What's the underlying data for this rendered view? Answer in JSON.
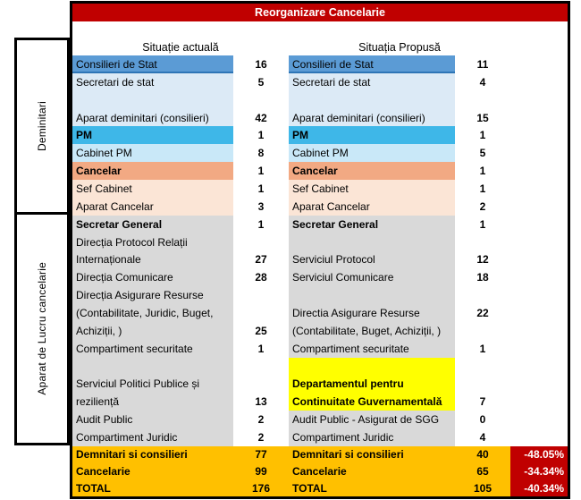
{
  "title": "Reorganizare Cancelarie",
  "column_headers": {
    "left": "Situație actuală",
    "right": "Situația Propusă"
  },
  "sidebar": {
    "group1": "Deminitari",
    "group2": "Aparat de Lucru cancelarie"
  },
  "colors": {
    "header_red": "#C00000",
    "percent_red": "#C00000",
    "consilieri_blue": "#5B9BD5",
    "light_blue": "#DCEAF6",
    "pm_cyan": "#3EB7E8",
    "light_cyan": "#C9E8F8",
    "cancelar_salmon": "#F2A983",
    "peach": "#FBE5D6",
    "gray": "#D9D9D9",
    "yellow": "#FFFF00",
    "summary_gold": "#FFC000"
  },
  "rows": [
    {
      "la": "Consilieri de Stat",
      "lv": "16",
      "ra": "Consilieri de Stat",
      "rv": "11",
      "lc": "blue edge",
      "rc": "blue edge",
      "lb": false,
      "rb": false
    },
    {
      "la": "Secretari de stat",
      "lv": "5",
      "ra": "Secretari de stat",
      "rv": "4",
      "lc": "lblue",
      "rc": "lblue",
      "lb": false,
      "rb": false
    },
    {
      "la": "",
      "lv": "",
      "ra": "",
      "rv": "",
      "lc": "lblue",
      "rc": "lblue",
      "lb": false,
      "rb": false
    },
    {
      "la": "Aparat deminitari (consilieri)",
      "lv": "42",
      "ra": "Aparat deminitari (consilieri)",
      "rv": "15",
      "lc": "lblue",
      "rc": "lblue",
      "lb": false,
      "rb": false
    },
    {
      "la": "PM",
      "lv": "1",
      "ra": "PM",
      "rv": "1",
      "lc": "cyan",
      "rc": "cyan",
      "lb": true,
      "rb": true
    },
    {
      "la": "Cabinet PM",
      "lv": "8",
      "ra": "Cabinet PM",
      "rv": "5",
      "lc": "lcyan",
      "rc": "lcyan",
      "lb": false,
      "rb": false
    },
    {
      "la": "Cancelar",
      "lv": "1",
      "ra": "Cancelar",
      "rv": "1",
      "lc": "salmon",
      "rc": "salmon",
      "lb": true,
      "rb": true
    },
    {
      "la": "Sef Cabinet",
      "lv": "1",
      "ra": "Sef Cabinet",
      "rv": "1",
      "lc": "peach",
      "rc": "peach",
      "lb": false,
      "rb": false
    },
    {
      "la": "Aparat Cancelar",
      "lv": "3",
      "ra": "Aparat Cancelar",
      "rv": "2",
      "lc": "peach",
      "rc": "peach",
      "lb": false,
      "rb": false
    },
    {
      "la": "Secretar General",
      "lv": "1",
      "ra": "Secretar General",
      "rv": "1",
      "lc": "gray",
      "rc": "gray",
      "lb": true,
      "rb": true
    },
    {
      "la": "Direcția Protocol Relații",
      "lv": "",
      "ra": "",
      "rv": "",
      "lc": "gray",
      "rc": "gray",
      "lb": false,
      "rb": false
    },
    {
      "la": "Internaționale",
      "lv": "27",
      "ra": "Serviciul Protocol",
      "rv": "12",
      "lc": "gray",
      "rc": "gray",
      "lb": false,
      "rb": false
    },
    {
      "la": "Direcția Comunicare",
      "lv": "28",
      "ra": "Serviciul Comunicare",
      "rv": "18",
      "lc": "gray",
      "rc": "gray",
      "lb": false,
      "rb": false
    },
    {
      "la": "Direcția Asigurare Resurse",
      "lv": "",
      "ra": "",
      "rv": "",
      "lc": "gray",
      "rc": "gray",
      "lb": false,
      "rb": false
    },
    {
      "la": "(Contabilitate, Juridic, Buget,",
      "lv": "",
      "ra": "Directia Asigurare Resurse",
      "rv": "22",
      "lc": "gray",
      "rc": "gray",
      "lb": false,
      "rb": false
    },
    {
      "la": "Achiziții, )",
      "lv": "25",
      "ra": "(Contabilitate, Buget, Achiziții, )",
      "rv": "",
      "lc": "gray",
      "rc": "gray",
      "lb": false,
      "rb": false
    },
    {
      "la": "Compartiment securitate",
      "lv": "1",
      "ra": "Compartiment securitate",
      "rv": "1",
      "lc": "gray",
      "rc": "gray",
      "lb": false,
      "rb": false
    },
    {
      "la": "",
      "lv": "",
      "ra": "",
      "rv": "",
      "lc": "gray",
      "rc": "yellow",
      "lb": false,
      "rb": false
    },
    {
      "la": "Serviciul Politici Publice și",
      "lv": "",
      "ra": "Departamentul pentru",
      "rv": "",
      "lc": "gray",
      "rc": "yellow",
      "lb": false,
      "rb": true
    },
    {
      "la": "reziliență",
      "lv": "13",
      "ra": "Continuitate Guvernamentală",
      "rv": "7",
      "lc": "gray",
      "rc": "yellow",
      "lb": false,
      "rb": true
    },
    {
      "la": "Audit Public",
      "lv": "2",
      "ra": "Audit Public - Asigurat de SGG",
      "rv": "0",
      "lc": "gray",
      "rc": "gray",
      "lb": false,
      "rb": false
    },
    {
      "la": "Compartiment Juridic",
      "lv": "2",
      "ra": "Compartiment Juridic",
      "rv": "4",
      "lc": "gray",
      "rc": "gray",
      "lb": false,
      "rb": false
    }
  ],
  "summary": [
    {
      "la": "Demnitari si consilieri",
      "lv": "77",
      "ra": "Demnitari si consilieri",
      "rv": "40",
      "pct": "-48.05%"
    },
    {
      "la": "Cancelarie",
      "lv": "99",
      "ra": "Cancelarie",
      "rv": "65",
      "pct": "-34.34%"
    },
    {
      "la": "TOTAL",
      "lv": "176",
      "ra": "TOTAL",
      "rv": "105",
      "pct": "-40.34%"
    }
  ]
}
